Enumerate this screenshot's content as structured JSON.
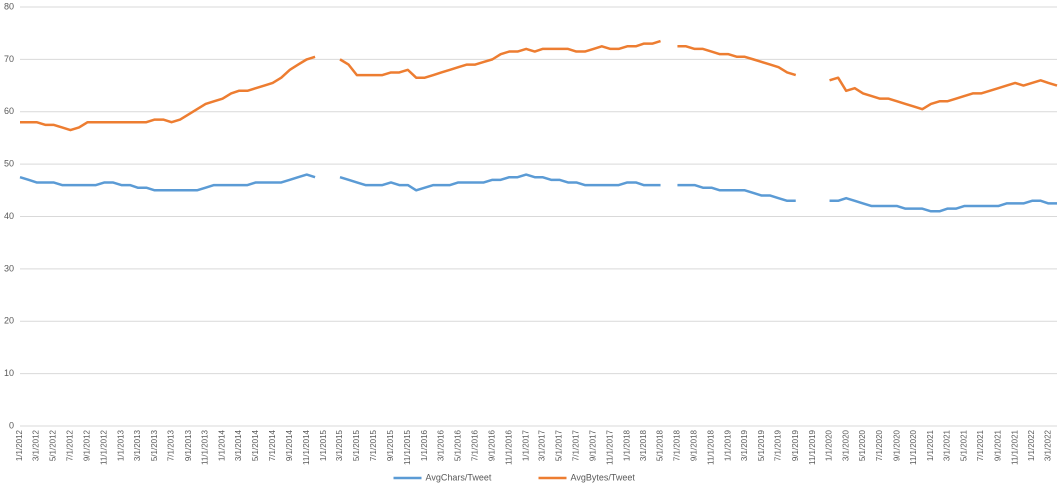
{
  "chart_data": {
    "type": "line",
    "x": [
      "1/1/2012",
      "2/1/2012",
      "3/1/2012",
      "4/1/2012",
      "5/1/2012",
      "6/1/2012",
      "7/1/2012",
      "8/1/2012",
      "9/1/2012",
      "10/1/2012",
      "11/1/2012",
      "12/1/2012",
      "1/1/2013",
      "2/1/2013",
      "3/1/2013",
      "4/1/2013",
      "5/1/2013",
      "6/1/2013",
      "7/1/2013",
      "8/1/2013",
      "9/1/2013",
      "10/1/2013",
      "11/1/2013",
      "12/1/2013",
      "1/1/2014",
      "2/1/2014",
      "3/1/2014",
      "4/1/2014",
      "5/1/2014",
      "6/1/2014",
      "7/1/2014",
      "8/1/2014",
      "9/1/2014",
      "10/1/2014",
      "11/1/2014",
      "12/1/2014",
      "1/1/2015",
      "2/1/2015",
      "3/1/2015",
      "4/1/2015",
      "5/1/2015",
      "6/1/2015",
      "7/1/2015",
      "8/1/2015",
      "9/1/2015",
      "10/1/2015",
      "11/1/2015",
      "12/1/2015",
      "1/1/2016",
      "2/1/2016",
      "3/1/2016",
      "4/1/2016",
      "5/1/2016",
      "6/1/2016",
      "7/1/2016",
      "8/1/2016",
      "9/1/2016",
      "10/1/2016",
      "11/1/2016",
      "12/1/2016",
      "1/1/2017",
      "2/1/2017",
      "3/1/2017",
      "4/1/2017",
      "5/1/2017",
      "6/1/2017",
      "7/1/2017",
      "8/1/2017",
      "9/1/2017",
      "10/1/2017",
      "11/1/2017",
      "12/1/2017",
      "1/1/2018",
      "2/1/2018",
      "3/1/2018",
      "4/1/2018",
      "5/1/2018",
      "6/1/2018",
      "7/1/2018",
      "8/1/2018",
      "9/1/2018",
      "10/1/2018",
      "11/1/2018",
      "12/1/2018",
      "1/1/2019",
      "2/1/2019",
      "3/1/2019",
      "4/1/2019",
      "5/1/2019",
      "6/1/2019",
      "7/1/2019",
      "8/1/2019",
      "9/1/2019",
      "10/1/2019",
      "11/1/2019",
      "12/1/2019",
      "1/1/2020",
      "2/1/2020",
      "3/1/2020",
      "4/1/2020",
      "5/1/2020",
      "6/1/2020",
      "7/1/2020",
      "8/1/2020",
      "9/1/2020",
      "10/1/2020",
      "11/1/2020",
      "12/1/2020",
      "1/1/2021",
      "2/1/2021",
      "3/1/2021",
      "4/1/2021",
      "5/1/2021",
      "6/1/2021",
      "7/1/2021",
      "8/1/2021",
      "9/1/2021",
      "10/1/2021",
      "11/1/2021",
      "12/1/2021",
      "1/1/2022",
      "2/1/2022",
      "3/1/2022",
      "4/1/2022"
    ],
    "series": [
      {
        "name": "AvgChars/Tweet",
        "color": "#5b9bd5",
        "values": [
          47.5,
          47,
          46.5,
          46.5,
          46.5,
          46,
          46,
          46,
          46,
          46,
          46.5,
          46.5,
          46,
          46,
          45.5,
          45.5,
          45,
          45,
          45,
          45,
          45,
          45,
          45.5,
          46,
          46,
          46,
          46,
          46,
          46.5,
          46.5,
          46.5,
          46.5,
          47,
          47.5,
          48,
          47.5,
          null,
          null,
          47.5,
          47,
          46.5,
          46,
          46,
          46,
          46.5,
          46,
          46,
          45,
          45.5,
          46,
          46,
          46,
          46.5,
          46.5,
          46.5,
          46.5,
          47,
          47,
          47.5,
          47.5,
          48,
          47.5,
          47.5,
          47,
          47,
          46.5,
          46.5,
          46,
          46,
          46,
          46,
          46,
          46.5,
          46.5,
          46,
          46,
          46,
          null,
          46,
          46,
          46,
          45.5,
          45.5,
          45,
          45,
          45,
          45,
          44.5,
          44,
          44,
          43.5,
          43,
          43,
          null,
          null,
          null,
          43,
          43,
          43.5,
          43,
          42.5,
          42,
          42,
          42,
          42,
          41.5,
          41.5,
          41.5,
          41,
          41,
          41.5,
          41.5,
          42,
          42,
          42,
          42,
          42,
          42.5,
          42.5,
          42.5,
          43,
          43,
          42.5,
          42.5
        ]
      },
      {
        "name": "AvgBytes/Tweet",
        "color": "#ed7d31",
        "values": [
          58,
          58,
          58,
          57.5,
          57.5,
          57,
          56.5,
          57,
          58,
          58,
          58,
          58,
          58,
          58,
          58,
          58,
          58.5,
          58.5,
          58,
          58.5,
          59.5,
          60.5,
          61.5,
          62,
          62.5,
          63.5,
          64,
          64,
          64.5,
          65,
          65.5,
          66.5,
          68,
          69,
          70,
          70.5,
          null,
          null,
          70,
          69,
          67,
          67,
          67,
          67,
          67.5,
          67.5,
          68,
          66.5,
          66.5,
          67,
          67.5,
          68,
          68.5,
          69,
          69,
          69.5,
          70,
          71,
          71.5,
          71.5,
          72,
          71.5,
          72,
          72,
          72,
          72,
          71.5,
          71.5,
          72,
          72.5,
          72,
          72,
          72.5,
          72.5,
          73,
          73,
          73.5,
          null,
          72.5,
          72.5,
          72,
          72,
          71.5,
          71,
          71,
          70.5,
          70.5,
          70,
          69.5,
          69,
          68.5,
          67.5,
          67,
          null,
          null,
          null,
          66,
          66.5,
          64,
          64.5,
          63.5,
          63,
          62.5,
          62.5,
          62,
          61.5,
          61,
          60.5,
          61.5,
          62,
          62,
          62.5,
          63,
          63.5,
          63.5,
          64,
          64.5,
          65,
          65.5,
          65,
          65.5,
          66,
          65.5,
          65
        ]
      }
    ],
    "xlim": [
      "1/1/2012",
      "4/1/2022"
    ],
    "xticks": [
      "1/1/2012",
      "3/1/2012",
      "5/1/2012",
      "7/1/2012",
      "9/1/2012",
      "11/1/2012",
      "1/1/2013",
      "3/1/2013",
      "5/1/2013",
      "7/1/2013",
      "9/1/2013",
      "11/1/2013",
      "1/1/2014",
      "3/1/2014",
      "5/1/2014",
      "7/1/2014",
      "9/1/2014",
      "11/1/2014",
      "1/1/2015",
      "3/1/2015",
      "5/1/2015",
      "7/1/2015",
      "9/1/2015",
      "11/1/2015",
      "1/1/2016",
      "3/1/2016",
      "5/1/2016",
      "7/1/2016",
      "9/1/2016",
      "11/1/2016",
      "1/1/2017",
      "3/1/2017",
      "5/1/2017",
      "7/1/2017",
      "9/1/2017",
      "11/1/2017",
      "1/1/2018",
      "3/1/2018",
      "5/1/2018",
      "7/1/2018",
      "9/1/2018",
      "11/1/2018",
      "1/1/2019",
      "3/1/2019",
      "5/1/2019",
      "7/1/2019",
      "9/1/2019",
      "11/1/2019",
      "1/1/2020",
      "3/1/2020",
      "5/1/2020",
      "7/1/2020",
      "9/1/2020",
      "11/1/2020",
      "1/1/2021",
      "3/1/2021",
      "5/1/2021",
      "7/1/2021",
      "9/1/2021",
      "11/1/2021",
      "1/1/2022",
      "3/1/2022"
    ],
    "ylim": [
      0,
      80
    ],
    "yticks": [
      0,
      10,
      20,
      30,
      40,
      50,
      60,
      70,
      80
    ],
    "grid": true,
    "legend": "bottom"
  }
}
